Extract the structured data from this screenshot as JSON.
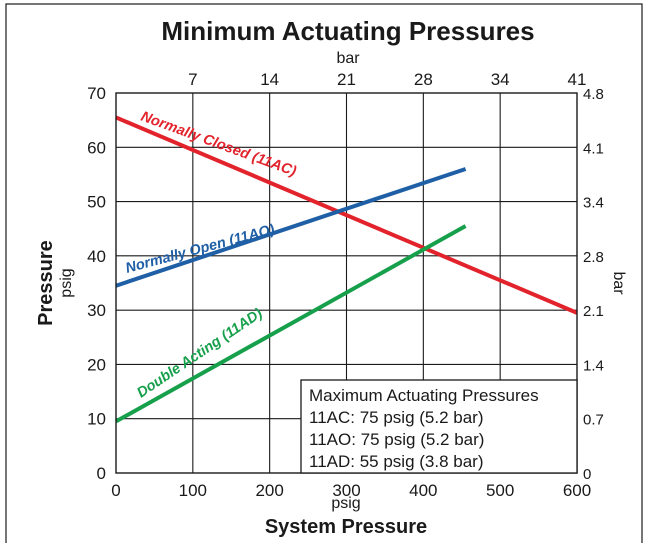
{
  "chart_data": {
    "type": "line",
    "title": "Minimum Actuating Pressures",
    "xlabel": "System Pressure",
    "xlabel_unit": "psig",
    "ylabel": "Pressure",
    "ylabel_unit": "psig",
    "top_axis_label": "bar",
    "right_axis_label": "bar",
    "xlim": [
      0,
      600
    ],
    "ylim": [
      0,
      70
    ],
    "grid": true,
    "x_ticks": [
      "0",
      "100",
      "200",
      "300",
      "400",
      "500",
      "600"
    ],
    "y_ticks": [
      "0",
      "10",
      "20",
      "30",
      "40",
      "50",
      "60",
      "70"
    ],
    "top_ticks": [
      "7",
      "14",
      "21",
      "28",
      "34",
      "41"
    ],
    "right_ticks": [
      "0",
      "0.7",
      "1.4",
      "2.1",
      "2.8",
      "3.4",
      "4.1",
      "4.8"
    ],
    "series": [
      {
        "name": "Normally Closed (11AC)",
        "color": "#e3232c",
        "x": [
          0,
          600
        ],
        "y": [
          65.5,
          29.5
        ]
      },
      {
        "name": "Normally Open (11AO)",
        "color": "#1f5fa6",
        "x": [
          0,
          455
        ],
        "y": [
          34.5,
          56
        ]
      },
      {
        "name": "Double Acting (11AD)",
        "color": "#17a04c",
        "x": [
          0,
          455
        ],
        "y": [
          9.5,
          45.5
        ]
      }
    ],
    "legend_box": {
      "title": "Maximum Actuating Pressures",
      "lines": [
        "11AC: 75 psig (5.2 bar)",
        "11AO: 75 psig (5.2 bar)",
        "11AD: 55 psig (3.8 bar)"
      ]
    }
  }
}
